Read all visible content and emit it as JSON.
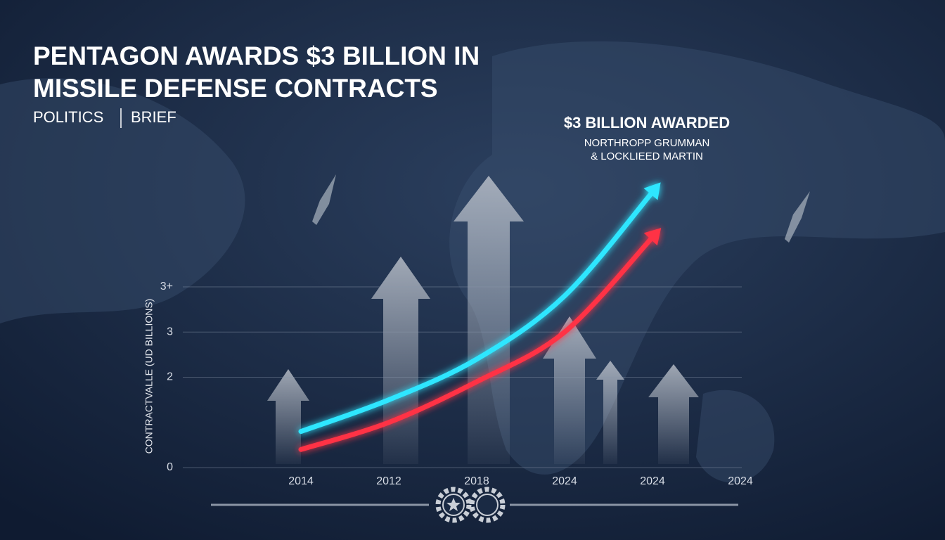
{
  "chart_data": {
    "type": "line",
    "title": [
      "PENTAGON AWARDS $3 BILLION IN",
      "MISSILE DEFENSE CONTRACTS"
    ],
    "tags": [
      "POLITICS",
      "BRIEF"
    ],
    "annotations": [
      "$3 BILLION AWARDED",
      "NORTHROPP GRUMMAN",
      "& LOCKLIEED MARTIN"
    ],
    "y_label": "CONTRACTVALLE (UD BILLIONS)",
    "categories": [
      "2014",
      "2012",
      "2018",
      "2024",
      "2024",
      "2024"
    ],
    "series": [
      {
        "color": "#2ee6ff",
        "values": [
          0.8,
          1.5,
          2.4,
          3.8,
          6.1,
          null
        ]
      },
      {
        "color": "#ff3344",
        "values": [
          0.4,
          1.0,
          1.9,
          3.0,
          5.1,
          null
        ]
      }
    ],
    "ylim": [
      0,
      4
    ],
    "yticks": [
      0,
      2,
      3,
      {
        "value": 4,
        "label": "3+"
      }
    ],
    "grid": true
  }
}
